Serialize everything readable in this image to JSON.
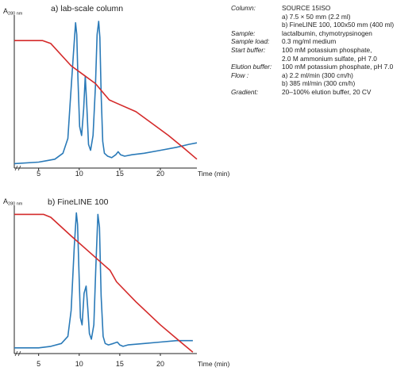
{
  "chart_data": [
    {
      "type": "line",
      "title": "a)  lab-scale column",
      "ylabel_main": "A",
      "ylabel_sub": "280 nm",
      "xlabel": "Time (min)",
      "xticks": [
        5,
        10,
        15,
        20
      ],
      "xlim": [
        2.0,
        24.5
      ],
      "ylim": [
        0,
        100
      ],
      "series": [
        {
          "name": "",
          "color": "#2a7ab8",
          "x": [
            2.0,
            5.0,
            6.0,
            7.0,
            8.0,
            8.6,
            8.9,
            9.3,
            9.55,
            9.7,
            9.85,
            10.05,
            10.3,
            10.55,
            10.75,
            10.95,
            11.15,
            11.4,
            11.7,
            12.0,
            12.2,
            12.4,
            12.55,
            12.7,
            12.9,
            13.1,
            13.5,
            14.0,
            14.5,
            14.8,
            15.1,
            15.6,
            16.5,
            18.0,
            20.0,
            22.0,
            23.5,
            24.5
          ],
          "y": [
            3,
            4,
            5,
            6,
            10,
            20,
            45,
            78,
            98,
            90,
            60,
            28,
            22,
            40,
            62,
            40,
            16,
            12,
            22,
            55,
            90,
            99,
            88,
            50,
            18,
            10,
            8,
            7,
            9,
            11,
            9,
            8,
            9,
            10,
            12,
            14,
            16,
            17
          ]
        },
        {
          "name": "",
          "color": "#d42a2a",
          "x": [
            2.0,
            5.5,
            6.5,
            9.0,
            10.5,
            12.0,
            13.7,
            14.5,
            17.0,
            19.0,
            21.0,
            23.0,
            24.5
          ],
          "y": [
            86,
            86,
            84,
            69,
            63,
            57,
            46,
            44,
            38,
            30,
            22,
            13,
            6
          ]
        }
      ]
    },
    {
      "type": "line",
      "title": "b) FineLINE 100",
      "ylabel_main": "A",
      "ylabel_sub": "280 nm",
      "xlabel": "Time (min)",
      "xticks": [
        5,
        10,
        15,
        20
      ],
      "xlim": [
        2.0,
        24.5
      ],
      "ylim": [
        0,
        100
      ],
      "series": [
        {
          "name": "",
          "color": "#2a7ab8",
          "x": [
            2.0,
            5.0,
            6.5,
            7.8,
            8.6,
            9.0,
            9.4,
            9.65,
            9.8,
            9.95,
            10.15,
            10.35,
            10.6,
            10.85,
            11.05,
            11.25,
            11.5,
            11.8,
            12.05,
            12.3,
            12.5,
            12.7,
            12.95,
            13.2,
            13.6,
            14.2,
            14.7,
            15.0,
            15.4,
            16.0,
            18.0,
            20.0,
            22.0,
            24.0
          ],
          "y": [
            4,
            4,
            5,
            7,
            12,
            30,
            75,
            98,
            90,
            60,
            25,
            20,
            42,
            47,
            32,
            14,
            10,
            20,
            60,
            97,
            88,
            40,
            12,
            7,
            6,
            7,
            8,
            6,
            5,
            6,
            7,
            8,
            9,
            9
          ]
        },
        {
          "name": "",
          "color": "#d42a2a",
          "x": [
            2.0,
            5.6,
            6.5,
            9.0,
            11.0,
            13.0,
            13.8,
            14.6,
            17.0,
            20.0,
            22.5,
            24.0
          ],
          "y": [
            97,
            97,
            95,
            82,
            72,
            62,
            58,
            50,
            36,
            20,
            8,
            1
          ]
        }
      ]
    }
  ],
  "conditions": [
    {
      "label": "Column:",
      "lines": [
        "SOURCE 15ISO",
        "a) 7.5 × 50 mm (2.2 ml)",
        "b) FineLINE 100, 100x50 mm (400 ml)"
      ]
    },
    {
      "label": "Sample:",
      "lines": [
        "lactalbumin, chymotrypsinogen"
      ]
    },
    {
      "label": "Sample load:",
      "lines": [
        "0.3 mg/ml medium"
      ]
    },
    {
      "label": "Start buffer:",
      "lines": [
        "100 mM potassium phosphate,",
        "2.0 M ammonium sulfate, pH 7.0"
      ]
    },
    {
      "label": "Elution buffer:",
      "lines": [
        "100 mM potassium phosphate, pH 7.0"
      ]
    },
    {
      "label": "Flow :",
      "lines": [
        "a) 2.2 ml/min (300 cm/h)",
        "b) 385 ml/min (300 cm/h)"
      ]
    },
    {
      "label": "Gradient:",
      "lines": [
        "20–100% elution buffer, 20 CV"
      ]
    }
  ]
}
